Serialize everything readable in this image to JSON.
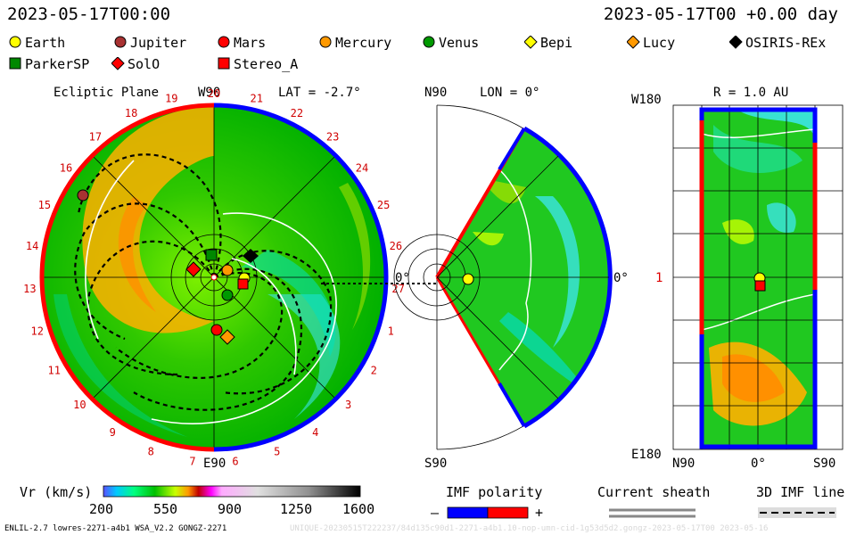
{
  "header": {
    "left_time": "2023-05-17T00:00",
    "right_time": "2023-05-17T00 +0.00 day"
  },
  "legend": [
    {
      "name": "Earth",
      "shape": "circle",
      "color": "#ffff00"
    },
    {
      "name": "Jupiter",
      "shape": "circle",
      "color": "#a83232"
    },
    {
      "name": "Mars",
      "shape": "circle",
      "color": "#ff0000"
    },
    {
      "name": "Mercury",
      "shape": "circle",
      "color": "#ff9900"
    },
    {
      "name": "Venus",
      "shape": "circle",
      "color": "#009900"
    },
    {
      "name": "Bepi",
      "shape": "diamond",
      "color": "#ffff00"
    },
    {
      "name": "Lucy",
      "shape": "diamond",
      "color": "#ff9900"
    },
    {
      "name": "OSIRIS-REx",
      "shape": "diamond",
      "color": "#000000"
    },
    {
      "name": "ParkerSP",
      "shape": "square",
      "color": "#008800"
    },
    {
      "name": "SolO",
      "shape": "diamond",
      "color": "#ff0000"
    },
    {
      "name": "Stereo_A",
      "shape": "square",
      "color": "#ff0000"
    }
  ],
  "ecliptic": {
    "title": "Ecliptic Plane",
    "top_label": "W90",
    "lat_label": "LAT = -2.7°",
    "bottom_label": "E90",
    "zero_label": "0°",
    "numbers": [
      "20",
      "21",
      "22",
      "23",
      "24",
      "25",
      "26",
      "27",
      "1",
      "2",
      "3",
      "4",
      "5",
      "6",
      "7",
      "8",
      "9",
      "10",
      "11",
      "12",
      "13",
      "14",
      "15",
      "16",
      "17",
      "18",
      "19"
    ]
  },
  "meridional": {
    "top_label": "N90",
    "lon_label": "LON = 0°",
    "bottom_label": "S90",
    "zero_label": "0°"
  },
  "radial": {
    "r_label": "R = 1.0 AU",
    "top_left": "W180",
    "bottom_left": "E180",
    "mid_left": "1",
    "x_left": "N90",
    "x_mid": "0°",
    "x_right": "S90"
  },
  "colorbar": {
    "label": "Vr (km/s)",
    "ticks": [
      "200",
      "550",
      "900",
      "1250",
      "1600"
    ]
  },
  "imf": {
    "title": "IMF polarity",
    "minus": "–",
    "plus": "+",
    "neg_color": "#0000ff",
    "pos_color": "#ff0000"
  },
  "sheath": {
    "title": "Current sheath"
  },
  "imf3d": {
    "title": "3D IMF line"
  },
  "footer": {
    "left": "ENLIL-2.7 lowres-2271-a4b1 WSA_V2.2 GONGZ-2271",
    "right": "UNIQUE-20230515T222237/84d135c90d1-2271-a4b1.10-nop-umn-cid-1g53d5d2.gongz-2023-05-17T00   2023-05-16"
  }
}
